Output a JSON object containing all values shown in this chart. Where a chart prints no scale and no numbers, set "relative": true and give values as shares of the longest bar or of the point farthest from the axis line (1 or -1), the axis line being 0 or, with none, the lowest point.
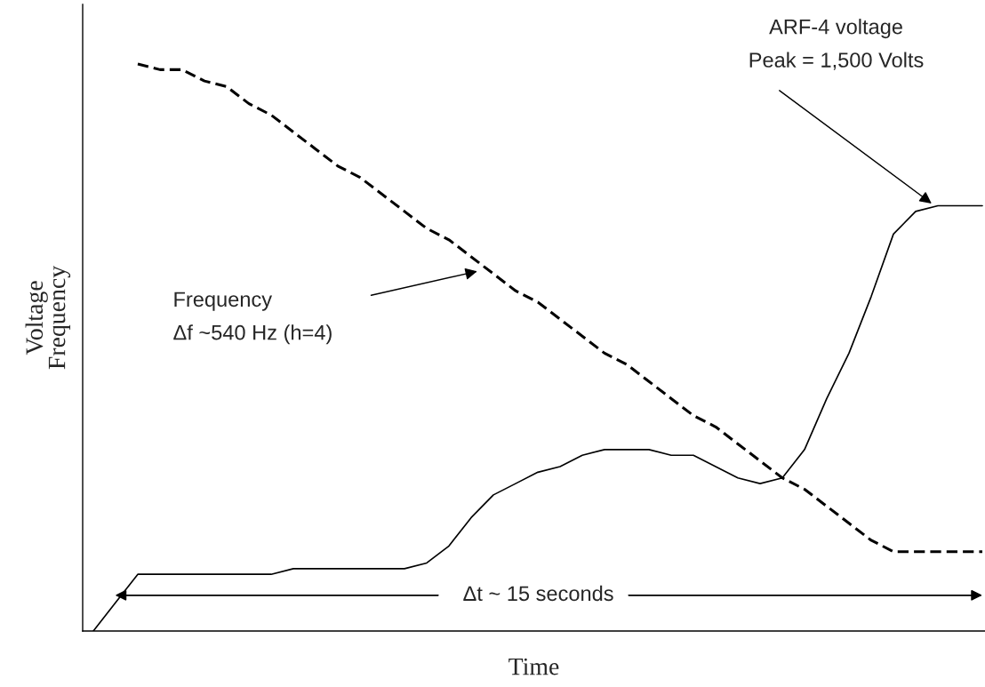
{
  "chart_data": {
    "type": "line",
    "relative": true,
    "xlabel": "Time",
    "ylabel": "Voltage\nFrequency",
    "legend": false,
    "grid": false,
    "annotations": [
      "ARF-4 voltage\nPeak = 1,500 Volts",
      "Frequency\nΔf ~540 Hz (h=4)",
      "Δt ~ 15 seconds"
    ],
    "categories": [
      null,
      null,
      null,
      null,
      null,
      null,
      null,
      null,
      null,
      null,
      null,
      null,
      null,
      null,
      null,
      null,
      null,
      null,
      null,
      null,
      null,
      null,
      null,
      null,
      null,
      null,
      null,
      null,
      null,
      null,
      null,
      null,
      null,
      null,
      null,
      null,
      null,
      null,
      null,
      null,
      null
    ],
    "series": [
      {
        "color": "#000000",
        "line_style": "dashed",
        "values": [
          null,
          null,
          1.0,
          0.99,
          0.99,
          0.97,
          0.96,
          0.93,
          0.91,
          0.88,
          0.85,
          0.82,
          0.8,
          0.77,
          0.74,
          0.71,
          0.69,
          0.66,
          0.63,
          0.6,
          0.58,
          0.55,
          0.52,
          0.49,
          0.47,
          0.44,
          0.41,
          0.38,
          0.36,
          0.33,
          0.3,
          0.27,
          0.25,
          0.22,
          0.19,
          0.16,
          0.14,
          0.14,
          0.14,
          0.14,
          0.14
        ]
      },
      {
        "color": "#000000",
        "line_style": "solid",
        "values": [
          0,
          0.05,
          0.1,
          0.1,
          0.1,
          0.1,
          0.1,
          0.1,
          0.1,
          0.11,
          0.11,
          0.11,
          0.11,
          0.11,
          0.11,
          0.12,
          0.15,
          0.2,
          0.24,
          0.26,
          0.28,
          0.29,
          0.31,
          0.32,
          0.32,
          0.32,
          0.31,
          0.31,
          0.29,
          0.27,
          0.26,
          0.27,
          0.32,
          0.41,
          0.49,
          0.59,
          0.7,
          0.74,
          0.75,
          0.75,
          0.75
        ]
      }
    ]
  }
}
